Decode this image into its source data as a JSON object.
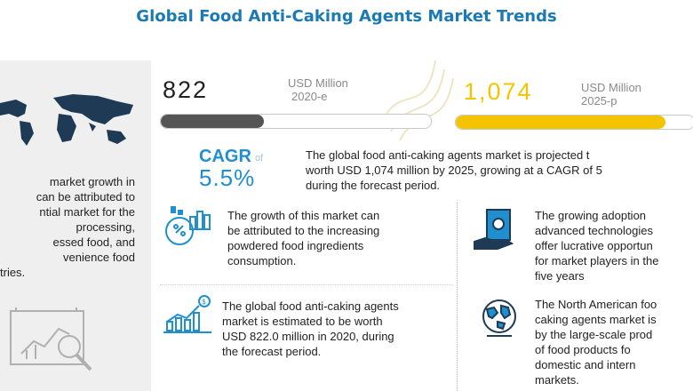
{
  "title": "Global Food Anti-Caking Agents  Market Trends",
  "stats": {
    "left": {
      "value": "822",
      "unit_line1": "USD Million",
      "unit_line2": "2020-e",
      "bar_fraction": 0.38,
      "bar_color": "#555555"
    },
    "right": {
      "value": "1,074",
      "unit_line1": "USD Million",
      "unit_line2": "2025-p",
      "bar_fraction": 0.88,
      "bar_color": "#f5c400"
    }
  },
  "cagr": {
    "label": "CAGR",
    "of": "of",
    "value": "5.5%"
  },
  "summary": [
    "The global food anti-caking agents market is projected t",
    "worth USD  1,074 million by 2025, growing at a CAGR of 5",
    "during the forecast period."
  ],
  "left_text": [
    "market growth in",
    "can be attributed to",
    "ntial market for the",
    "processing,",
    "essed food,       and",
    "venience         food",
    "tries."
  ],
  "blocks": {
    "powder": [
      "The growth of this market can",
      "be attributed to the increasing",
      "powdered food    ingredients",
      "consumption."
    ],
    "estimate": [
      "The global food anti-caking agents",
      "market is estimated to be worth",
      "USD 822.0 million in 2020, during",
      "the forecast period."
    ],
    "adoption": [
      "The   growing   adoption",
      "advanced   technologies",
      "offer lucrative opportun",
      "for market players in the",
      "five years"
    ],
    "north_america": [
      "The North American foo",
      "caking agents market is",
      "by the large-scale prod",
      "of   food   products   fo",
      "domestic     and     intern",
      "markets."
    ]
  },
  "colors": {
    "title": "#1b7ab3",
    "cagr": "#1f8fd0",
    "icon_blue": "#1f8fd0",
    "accent_yellow": "#f5c400",
    "gray_bar": "#555555"
  },
  "icons": [
    "world-map-icon",
    "chart-magnifier-icon",
    "powder-chart-icon",
    "growth-chart-icon",
    "money-hand-icon",
    "globe-icon"
  ]
}
